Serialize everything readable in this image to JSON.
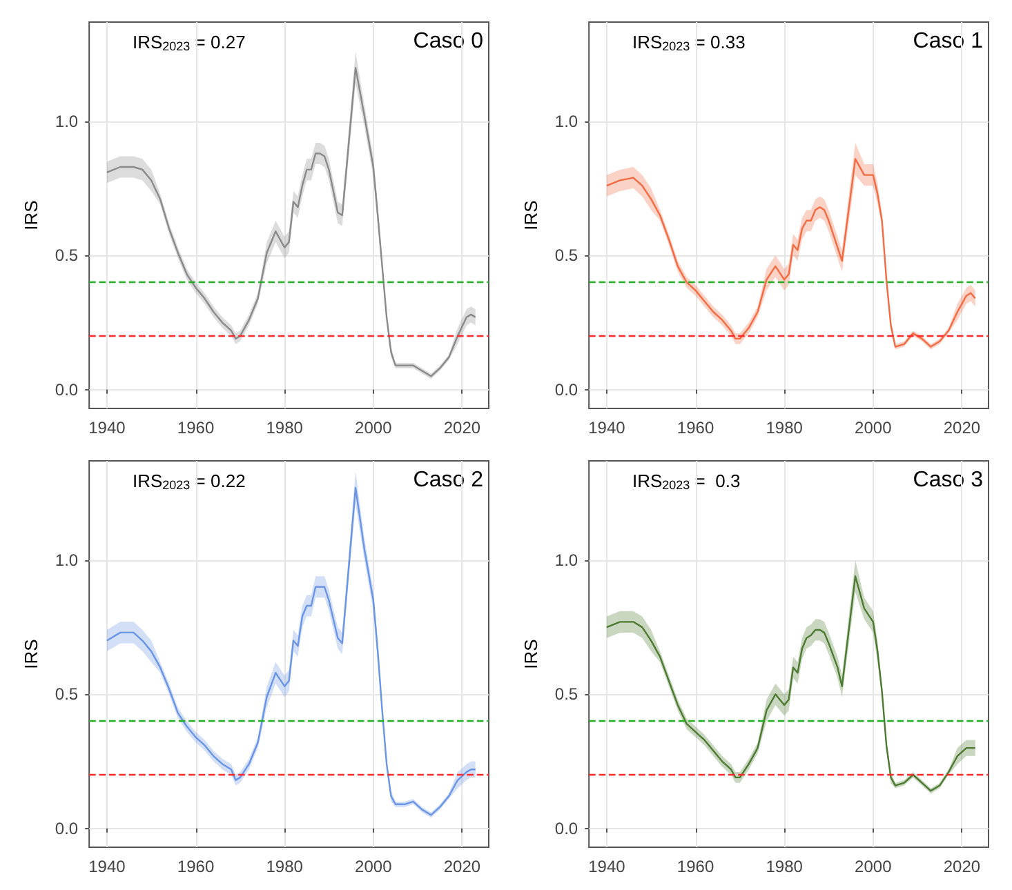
{
  "chart_data": [
    {
      "type": "line",
      "title": "Caso 0",
      "ylabel": "IRS",
      "annotations": [
        "IRS$_{2023}$ = 0.27"
      ],
      "xlim": [
        1936,
        2026
      ],
      "xticks": [
        1940,
        1960,
        1980,
        2000,
        2020
      ],
      "ylim": [
        -0.07,
        1.37
      ],
      "yticks": [
        {
          "value": 0,
          "label": "0.0"
        },
        {
          "value": 0.5,
          "label": "0.5"
        },
        {
          "value": 1,
          "label": "1.0"
        }
      ],
      "grid": true,
      "ref_lines": [
        {
          "axis": "y",
          "value": 0.4,
          "color": "#22b022",
          "line_style": "dashed"
        },
        {
          "axis": "y",
          "value": 0.2,
          "color": "#ff2a2a",
          "line_style": "dashed"
        }
      ],
      "x": [
        1940,
        1943,
        1946,
        1948,
        1950,
        1952,
        1954,
        1956,
        1958,
        1960,
        1962,
        1964,
        1966,
        1968,
        1969,
        1970,
        1972,
        1974,
        1976,
        1978,
        1980,
        1981,
        1982,
        1983,
        1984,
        1985,
        1986,
        1987,
        1988,
        1989,
        1990,
        1992,
        1993,
        1996,
        1998,
        2000,
        2001,
        2002,
        2003,
        2004,
        2005,
        2007,
        2009,
        2011,
        2013,
        2015,
        2017,
        2019,
        2021,
        2022,
        2023
      ],
      "series": [
        {
          "color": "#8a8a8a",
          "values": [
            0.81,
            0.83,
            0.83,
            0.82,
            0.78,
            0.71,
            0.6,
            0.51,
            0.43,
            0.38,
            0.34,
            0.29,
            0.25,
            0.22,
            0.19,
            0.2,
            0.26,
            0.34,
            0.51,
            0.59,
            0.53,
            0.55,
            0.7,
            0.68,
            0.76,
            0.82,
            0.82,
            0.88,
            0.88,
            0.87,
            0.82,
            0.66,
            0.65,
            1.2,
            1.02,
            0.83,
            0.65,
            0.46,
            0.27,
            0.14,
            0.09,
            0.09,
            0.09,
            0.07,
            0.05,
            0.08,
            0.12,
            0.2,
            0.27,
            0.28,
            0.27
          ],
          "lower": [
            0.77,
            0.79,
            0.79,
            0.78,
            0.74,
            0.69,
            0.58,
            0.49,
            0.41,
            0.36,
            0.32,
            0.27,
            0.23,
            0.2,
            0.17,
            0.18,
            0.24,
            0.32,
            0.47,
            0.55,
            0.49,
            0.51,
            0.66,
            0.64,
            0.72,
            0.78,
            0.78,
            0.84,
            0.84,
            0.83,
            0.78,
            0.62,
            0.61,
            1.14,
            0.98,
            0.79,
            0.61,
            0.44,
            0.25,
            0.12,
            0.08,
            0.08,
            0.08,
            0.06,
            0.04,
            0.07,
            0.11,
            0.17,
            0.24,
            0.25,
            0.24
          ],
          "upper": [
            0.85,
            0.87,
            0.87,
            0.86,
            0.82,
            0.73,
            0.62,
            0.53,
            0.45,
            0.4,
            0.36,
            0.31,
            0.27,
            0.24,
            0.21,
            0.22,
            0.28,
            0.36,
            0.55,
            0.63,
            0.57,
            0.59,
            0.74,
            0.72,
            0.8,
            0.86,
            0.86,
            0.92,
            0.92,
            0.91,
            0.86,
            0.7,
            0.69,
            1.26,
            1.06,
            0.87,
            0.69,
            0.48,
            0.29,
            0.16,
            0.1,
            0.1,
            0.1,
            0.08,
            0.06,
            0.09,
            0.13,
            0.23,
            0.3,
            0.31,
            0.3
          ]
        }
      ]
    },
    {
      "type": "line",
      "title": "Caso 1",
      "ylabel": "IRS",
      "annotations": [
        "IRS$_{2023}$ = 0.33"
      ],
      "xlim": [
        1936,
        2026
      ],
      "xticks": [
        1940,
        1960,
        1980,
        2000,
        2020
      ],
      "ylim": [
        -0.07,
        1.37
      ],
      "yticks": [
        {
          "value": 0,
          "label": "0.0"
        },
        {
          "value": 0.5,
          "label": "0.5"
        },
        {
          "value": 1,
          "label": "1.0"
        }
      ],
      "grid": true,
      "ref_lines": [
        {
          "axis": "y",
          "value": 0.4,
          "color": "#22b022",
          "line_style": "dashed"
        },
        {
          "axis": "y",
          "value": 0.2,
          "color": "#ff2a2a",
          "line_style": "dashed"
        }
      ],
      "x": [
        1940,
        1943,
        1946,
        1948,
        1950,
        1952,
        1954,
        1956,
        1958,
        1960,
        1962,
        1964,
        1966,
        1968,
        1969,
        1970,
        1972,
        1974,
        1976,
        1978,
        1980,
        1981,
        1982,
        1983,
        1984,
        1985,
        1986,
        1987,
        1988,
        1989,
        1990,
        1992,
        1993,
        1996,
        1998,
        2000,
        2001,
        2002,
        2003,
        2004,
        2005,
        2007,
        2009,
        2011,
        2013,
        2015,
        2017,
        2019,
        2021,
        2022,
        2023
      ],
      "series": [
        {
          "color": "#f26b43",
          "values": [
            0.76,
            0.78,
            0.79,
            0.76,
            0.71,
            0.65,
            0.56,
            0.46,
            0.4,
            0.37,
            0.33,
            0.29,
            0.26,
            0.22,
            0.19,
            0.19,
            0.23,
            0.29,
            0.41,
            0.46,
            0.41,
            0.43,
            0.54,
            0.52,
            0.6,
            0.63,
            0.63,
            0.67,
            0.68,
            0.67,
            0.63,
            0.53,
            0.48,
            0.86,
            0.8,
            0.8,
            0.73,
            0.63,
            0.41,
            0.24,
            0.16,
            0.17,
            0.21,
            0.19,
            0.16,
            0.18,
            0.22,
            0.29,
            0.35,
            0.36,
            0.34
          ],
          "lower": [
            0.72,
            0.74,
            0.75,
            0.72,
            0.67,
            0.63,
            0.54,
            0.44,
            0.38,
            0.35,
            0.31,
            0.27,
            0.24,
            0.2,
            0.17,
            0.17,
            0.21,
            0.27,
            0.37,
            0.42,
            0.37,
            0.39,
            0.5,
            0.48,
            0.56,
            0.59,
            0.59,
            0.63,
            0.64,
            0.63,
            0.59,
            0.49,
            0.44,
            0.8,
            0.76,
            0.76,
            0.69,
            0.61,
            0.39,
            0.22,
            0.15,
            0.16,
            0.2,
            0.18,
            0.15,
            0.17,
            0.21,
            0.26,
            0.32,
            0.33,
            0.31
          ],
          "upper": [
            0.8,
            0.82,
            0.83,
            0.8,
            0.75,
            0.67,
            0.58,
            0.48,
            0.42,
            0.39,
            0.35,
            0.31,
            0.28,
            0.24,
            0.21,
            0.21,
            0.25,
            0.31,
            0.45,
            0.5,
            0.45,
            0.47,
            0.58,
            0.56,
            0.64,
            0.67,
            0.67,
            0.71,
            0.72,
            0.71,
            0.67,
            0.57,
            0.52,
            0.92,
            0.84,
            0.84,
            0.77,
            0.65,
            0.43,
            0.26,
            0.17,
            0.18,
            0.22,
            0.2,
            0.17,
            0.19,
            0.23,
            0.32,
            0.38,
            0.39,
            0.37
          ]
        }
      ]
    },
    {
      "type": "line",
      "title": "Caso 2",
      "ylabel": "IRS",
      "annotations": [
        "IRS$_{2023}$ = 0.22"
      ],
      "xlim": [
        1936,
        2026
      ],
      "xticks": [
        1940,
        1960,
        1980,
        2000,
        2020
      ],
      "ylim": [
        -0.07,
        1.37
      ],
      "yticks": [
        {
          "value": 0,
          "label": "0.0"
        },
        {
          "value": 0.5,
          "label": "0.5"
        },
        {
          "value": 1,
          "label": "1.0"
        }
      ],
      "grid": true,
      "ref_lines": [
        {
          "axis": "y",
          "value": 0.4,
          "color": "#22b022",
          "line_style": "dashed"
        },
        {
          "axis": "y",
          "value": 0.2,
          "color": "#ff2a2a",
          "line_style": "dashed"
        }
      ],
      "x": [
        1940,
        1943,
        1946,
        1948,
        1950,
        1952,
        1954,
        1956,
        1958,
        1960,
        1962,
        1964,
        1966,
        1968,
        1969,
        1970,
        1972,
        1974,
        1976,
        1978,
        1980,
        1981,
        1982,
        1983,
        1984,
        1985,
        1986,
        1987,
        1988,
        1989,
        1990,
        1992,
        1993,
        1996,
        1998,
        2000,
        2001,
        2002,
        2003,
        2004,
        2005,
        2007,
        2009,
        2011,
        2013,
        2015,
        2017,
        2019,
        2021,
        2022,
        2023
      ],
      "series": [
        {
          "color": "#6a95e6",
          "values": [
            0.7,
            0.73,
            0.73,
            0.7,
            0.66,
            0.6,
            0.52,
            0.43,
            0.38,
            0.34,
            0.31,
            0.27,
            0.24,
            0.22,
            0.18,
            0.19,
            0.24,
            0.32,
            0.49,
            0.58,
            0.53,
            0.55,
            0.7,
            0.68,
            0.79,
            0.83,
            0.83,
            0.9,
            0.9,
            0.9,
            0.85,
            0.71,
            0.69,
            1.27,
            1.04,
            0.85,
            0.66,
            0.44,
            0.24,
            0.12,
            0.09,
            0.09,
            0.1,
            0.07,
            0.05,
            0.08,
            0.12,
            0.18,
            0.21,
            0.22,
            0.22
          ],
          "lower": [
            0.66,
            0.69,
            0.69,
            0.66,
            0.62,
            0.58,
            0.5,
            0.41,
            0.36,
            0.32,
            0.29,
            0.25,
            0.22,
            0.2,
            0.16,
            0.17,
            0.22,
            0.3,
            0.45,
            0.54,
            0.49,
            0.51,
            0.66,
            0.64,
            0.75,
            0.79,
            0.79,
            0.86,
            0.86,
            0.86,
            0.81,
            0.67,
            0.65,
            1.21,
            1.0,
            0.81,
            0.62,
            0.42,
            0.22,
            0.1,
            0.08,
            0.08,
            0.09,
            0.06,
            0.04,
            0.07,
            0.11,
            0.15,
            0.18,
            0.19,
            0.19
          ],
          "upper": [
            0.74,
            0.77,
            0.77,
            0.74,
            0.7,
            0.62,
            0.54,
            0.45,
            0.4,
            0.36,
            0.33,
            0.29,
            0.26,
            0.24,
            0.2,
            0.21,
            0.26,
            0.34,
            0.53,
            0.62,
            0.57,
            0.59,
            0.74,
            0.72,
            0.83,
            0.87,
            0.87,
            0.94,
            0.94,
            0.94,
            0.89,
            0.75,
            0.73,
            1.33,
            1.08,
            0.89,
            0.7,
            0.46,
            0.26,
            0.14,
            0.1,
            0.1,
            0.11,
            0.08,
            0.06,
            0.09,
            0.13,
            0.21,
            0.24,
            0.25,
            0.25
          ]
        }
      ]
    },
    {
      "type": "line",
      "title": "Caso 3",
      "ylabel": "IRS",
      "annotations": [
        "IRS$_{2023}$ =  0.3"
      ],
      "xlim": [
        1936,
        2026
      ],
      "xticks": [
        1940,
        1960,
        1980,
        2000,
        2020
      ],
      "ylim": [
        -0.07,
        1.37
      ],
      "yticks": [
        {
          "value": 0,
          "label": "0.0"
        },
        {
          "value": 0.5,
          "label": "0.5"
        },
        {
          "value": 1,
          "label": "1.0"
        }
      ],
      "grid": true,
      "ref_lines": [
        {
          "axis": "y",
          "value": 0.4,
          "color": "#22b022",
          "line_style": "dashed"
        },
        {
          "axis": "y",
          "value": 0.2,
          "color": "#ff2a2a",
          "line_style": "dashed"
        }
      ],
      "x": [
        1940,
        1943,
        1946,
        1948,
        1950,
        1952,
        1954,
        1956,
        1958,
        1960,
        1962,
        1964,
        1966,
        1968,
        1969,
        1970,
        1972,
        1974,
        1976,
        1978,
        1980,
        1981,
        1982,
        1983,
        1984,
        1985,
        1986,
        1987,
        1988,
        1989,
        1990,
        1992,
        1993,
        1996,
        1998,
        2000,
        2001,
        2002,
        2003,
        2004,
        2005,
        2007,
        2009,
        2011,
        2013,
        2015,
        2017,
        2019,
        2021,
        2022,
        2023
      ],
      "series": [
        {
          "color": "#4b7a30",
          "values": [
            0.75,
            0.77,
            0.77,
            0.75,
            0.7,
            0.64,
            0.55,
            0.46,
            0.39,
            0.36,
            0.33,
            0.29,
            0.25,
            0.22,
            0.19,
            0.19,
            0.24,
            0.3,
            0.44,
            0.5,
            0.46,
            0.48,
            0.6,
            0.58,
            0.67,
            0.71,
            0.72,
            0.74,
            0.74,
            0.73,
            0.69,
            0.6,
            0.53,
            0.94,
            0.82,
            0.77,
            0.66,
            0.51,
            0.31,
            0.19,
            0.16,
            0.17,
            0.2,
            0.17,
            0.14,
            0.16,
            0.21,
            0.27,
            0.3,
            0.3,
            0.3
          ],
          "lower": [
            0.71,
            0.73,
            0.73,
            0.71,
            0.66,
            0.62,
            0.53,
            0.44,
            0.37,
            0.34,
            0.31,
            0.27,
            0.23,
            0.2,
            0.17,
            0.17,
            0.22,
            0.28,
            0.4,
            0.46,
            0.42,
            0.44,
            0.56,
            0.54,
            0.63,
            0.67,
            0.68,
            0.7,
            0.7,
            0.69,
            0.65,
            0.56,
            0.49,
            0.88,
            0.78,
            0.73,
            0.62,
            0.49,
            0.29,
            0.17,
            0.15,
            0.16,
            0.19,
            0.16,
            0.13,
            0.15,
            0.2,
            0.24,
            0.27,
            0.27,
            0.27
          ],
          "upper": [
            0.79,
            0.81,
            0.81,
            0.79,
            0.74,
            0.66,
            0.57,
            0.48,
            0.41,
            0.38,
            0.35,
            0.31,
            0.27,
            0.24,
            0.21,
            0.21,
            0.26,
            0.32,
            0.48,
            0.54,
            0.5,
            0.52,
            0.64,
            0.62,
            0.71,
            0.75,
            0.76,
            0.78,
            0.78,
            0.77,
            0.73,
            0.64,
            0.57,
            1.0,
            0.86,
            0.81,
            0.7,
            0.53,
            0.33,
            0.21,
            0.17,
            0.18,
            0.21,
            0.18,
            0.15,
            0.17,
            0.22,
            0.3,
            0.33,
            0.33,
            0.33
          ]
        }
      ]
    }
  ]
}
